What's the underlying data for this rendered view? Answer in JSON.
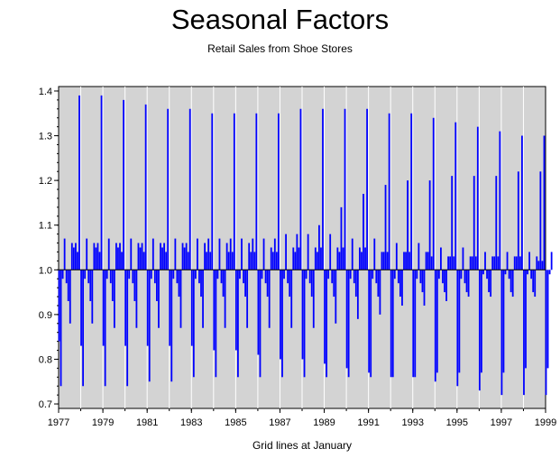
{
  "chart_data": {
    "type": "bar",
    "title": "Seasonal Factors",
    "subtitle": "Retail Sales from Shoe Stores",
    "xlabel": "Grid lines at January",
    "ylabel": "",
    "baseline": 1.0,
    "xlim": [
      1977,
      1999
    ],
    "ylim": [
      0.69,
      1.41
    ],
    "x_ticks": [
      "1977",
      "1979",
      "1981",
      "1983",
      "1985",
      "1987",
      "1989",
      "1991",
      "1993",
      "1995",
      "1997",
      "1999"
    ],
    "y_ticks": [
      "0.7",
      "0.8",
      "0.9",
      "1.0",
      "1.1",
      "1.2",
      "1.3",
      "1.4"
    ],
    "grid": "vertical lines at each January",
    "series": [
      {
        "frequency": "monthly",
        "start": "1977-01",
        "color": "#0000ff",
        "values": [
          0.84,
          0.74,
          0.98,
          1.07,
          0.97,
          0.93,
          0.88,
          1.06,
          1.05,
          1.06,
          1.04,
          1.39,
          0.83,
          0.74,
          0.98,
          1.07,
          0.97,
          0.93,
          0.88,
          1.06,
          1.05,
          1.06,
          1.04,
          1.39,
          0.83,
          0.74,
          0.98,
          1.07,
          0.97,
          0.93,
          0.87,
          1.06,
          1.05,
          1.06,
          1.04,
          1.38,
          0.83,
          0.74,
          0.98,
          1.07,
          0.97,
          0.93,
          0.87,
          1.06,
          1.05,
          1.06,
          1.04,
          1.37,
          0.83,
          0.75,
          0.98,
          1.07,
          0.97,
          0.93,
          0.87,
          1.06,
          1.05,
          1.06,
          1.04,
          1.36,
          0.83,
          0.75,
          0.98,
          1.07,
          0.97,
          0.94,
          0.87,
          1.06,
          1.05,
          1.06,
          1.04,
          1.36,
          0.83,
          0.76,
          0.98,
          1.07,
          0.97,
          0.94,
          0.87,
          1.06,
          1.04,
          1.07,
          1.04,
          1.35,
          0.82,
          0.76,
          0.98,
          1.07,
          0.97,
          0.94,
          0.87,
          1.06,
          1.04,
          1.07,
          1.04,
          1.35,
          0.82,
          0.76,
          0.98,
          1.07,
          0.97,
          0.94,
          0.87,
          1.06,
          1.04,
          1.07,
          1.04,
          1.35,
          0.81,
          0.76,
          0.98,
          1.07,
          0.97,
          0.94,
          0.87,
          1.05,
          1.04,
          1.07,
          1.04,
          1.35,
          0.8,
          0.76,
          0.98,
          1.08,
          0.97,
          0.94,
          0.87,
          1.05,
          1.04,
          1.08,
          1.05,
          1.36,
          0.8,
          0.76,
          0.98,
          1.08,
          0.97,
          0.94,
          0.87,
          1.05,
          1.04,
          1.1,
          1.05,
          1.36,
          0.79,
          0.76,
          0.98,
          1.08,
          0.97,
          0.94,
          0.88,
          1.05,
          1.04,
          1.14,
          1.05,
          1.36,
          0.78,
          0.76,
          0.98,
          1.07,
          0.97,
          0.94,
          0.89,
          1.05,
          1.04,
          1.17,
          1.05,
          1.36,
          0.77,
          0.76,
          0.98,
          1.07,
          0.97,
          0.94,
          0.9,
          1.04,
          1.04,
          1.19,
          1.04,
          1.35,
          0.76,
          0.76,
          0.98,
          1.06,
          0.97,
          0.94,
          0.92,
          1.04,
          1.04,
          1.2,
          1.04,
          1.35,
          0.76,
          0.76,
          0.98,
          1.06,
          0.97,
          0.95,
          0.92,
          1.04,
          1.04,
          1.2,
          1.03,
          1.34,
          0.75,
          0.77,
          0.98,
          1.05,
          0.97,
          0.95,
          0.93,
          1.03,
          1.03,
          1.21,
          1.03,
          1.33,
          0.74,
          0.77,
          0.98,
          1.05,
          0.97,
          0.95,
          0.94,
          1.03,
          1.03,
          1.21,
          1.03,
          1.32,
          0.73,
          0.77,
          0.99,
          1.04,
          0.98,
          0.95,
          0.94,
          1.03,
          1.03,
          1.21,
          1.03,
          1.31,
          0.72,
          0.77,
          0.99,
          1.04,
          0.98,
          0.95,
          0.94,
          1.03,
          1.03,
          1.22,
          1.03,
          1.3,
          0.72,
          0.78,
          0.99,
          1.04,
          0.98,
          0.95,
          0.94,
          1.03,
          1.02,
          1.22,
          1.02,
          1.3,
          0.72,
          0.78,
          0.99,
          1.04
        ]
      }
    ]
  }
}
